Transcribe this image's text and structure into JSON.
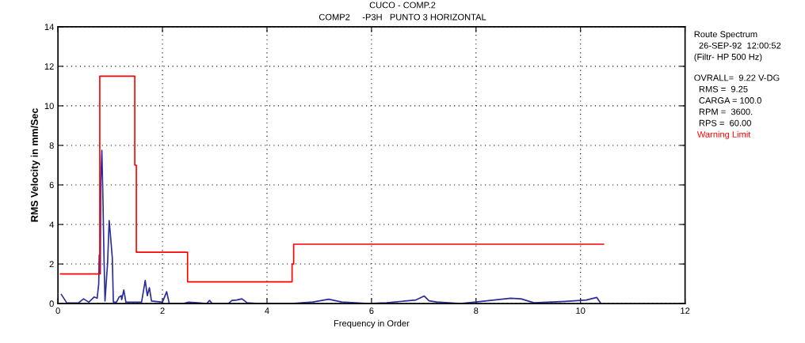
{
  "chart_data": {
    "type": "line",
    "title": "CUCO - COMP.2",
    "subtitle": "COMP2     -P3H   PUNTO 3 HORIZONTAL",
    "xlabel": "Frequency in Order",
    "ylabel": "RMS Velocity in mm/Sec",
    "annotations": [
      "Route Spectrum",
      "  26-SEP-92  12:00:52",
      "(Filtr- HP 500 Hz)",
      "OVRALL=  9.22 V-DG",
      "  RMS =  9.25",
      "  CARGA = 100.0",
      "  RPM =  3600.",
      "  RPS =  60.00"
    ],
    "xlim": [
      0,
      12
    ],
    "ylim": [
      0,
      14
    ],
    "xticks": [
      0,
      2,
      4,
      6,
      8,
      10,
      12
    ],
    "yticks": [
      0,
      2,
      4,
      6,
      8,
      10,
      12,
      14
    ],
    "grid": true,
    "legend": false,
    "line_style": "solid",
    "marker": "none",
    "series": [
      {
        "color": "#2b2b9a",
        "x": [
          0.065,
          0.17,
          0.39,
          0.49,
          0.59,
          0.69,
          0.75,
          0.78,
          0.79,
          0.81,
          0.82,
          0.84,
          0.86,
          0.88,
          0.9,
          0.93,
          0.95,
          0.98,
          1.0,
          1.04,
          1.06,
          1.12,
          1.17,
          1.21,
          1.22,
          1.26,
          1.3,
          1.6,
          1.67,
          1.71,
          1.75,
          1.79,
          2.0,
          2.08,
          2.13,
          2.4,
          2.5,
          2.85,
          2.9,
          2.95,
          3.26,
          3.33,
          3.42,
          3.52,
          3.62,
          3.82,
          4.47,
          4.88,
          5.18,
          5.43,
          5.94,
          6.29,
          6.85,
          7.01,
          7.1,
          7.25,
          7.7,
          8.0,
          8.66,
          8.86,
          9.11,
          9.71,
          10.11,
          10.31,
          10.38
        ],
        "values": [
          0.46,
          0.03,
          0.03,
          0.24,
          0.07,
          0.33,
          0.27,
          1.0,
          2.45,
          1.5,
          6.2,
          7.75,
          5.4,
          2.45,
          0.13,
          1.3,
          2.05,
          4.2,
          3.6,
          2.3,
          0.07,
          0.07,
          0.33,
          0.4,
          0.2,
          0.69,
          0.07,
          0.07,
          1.17,
          0.4,
          0.8,
          0.13,
          0.07,
          0.6,
          0,
          0,
          0.07,
          0,
          0.16,
          0,
          0,
          0.16,
          0.18,
          0.24,
          0.04,
          0,
          0,
          0.08,
          0.22,
          0.08,
          0,
          0.04,
          0.18,
          0.38,
          0.14,
          0.08,
          0,
          0.08,
          0.27,
          0.24,
          0.04,
          0.11,
          0.18,
          0.31,
          0.04
        ]
      },
      {
        "name": "Warning Limit",
        "color": "#ff0000",
        "x": [
          0.05,
          0.8,
          0.8,
          1.47,
          1.47,
          1.5,
          1.5,
          2.48,
          2.48,
          4.48,
          4.48,
          4.51,
          4.51,
          10.44
        ],
        "values": [
          1.5,
          1.5,
          11.5,
          11.5,
          7.0,
          7.0,
          2.6,
          2.6,
          1.1,
          1.1,
          2.0,
          2.0,
          3.0,
          3.0
        ]
      }
    ]
  }
}
